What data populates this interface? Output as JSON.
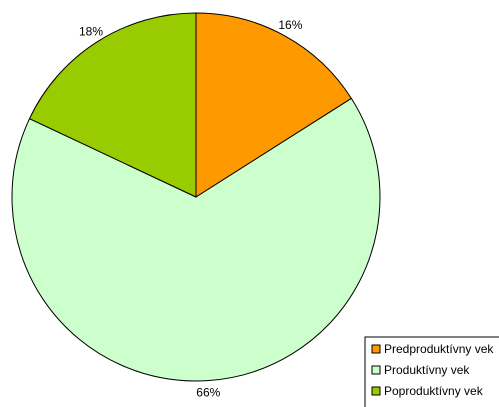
{
  "chart_data": {
    "type": "pie",
    "categories": [
      "Predproduktívny vek",
      "Produktívny vek",
      "Poproduktívny vek"
    ],
    "values": [
      16,
      66,
      18
    ],
    "labels": [
      "16%",
      "66%",
      "18%"
    ],
    "colors": [
      "#ff9900",
      "#ccffcc",
      "#99cc00"
    ],
    "legend_position": "bottom-right",
    "start_angle": "12 o'clock",
    "direction": "clockwise"
  }
}
